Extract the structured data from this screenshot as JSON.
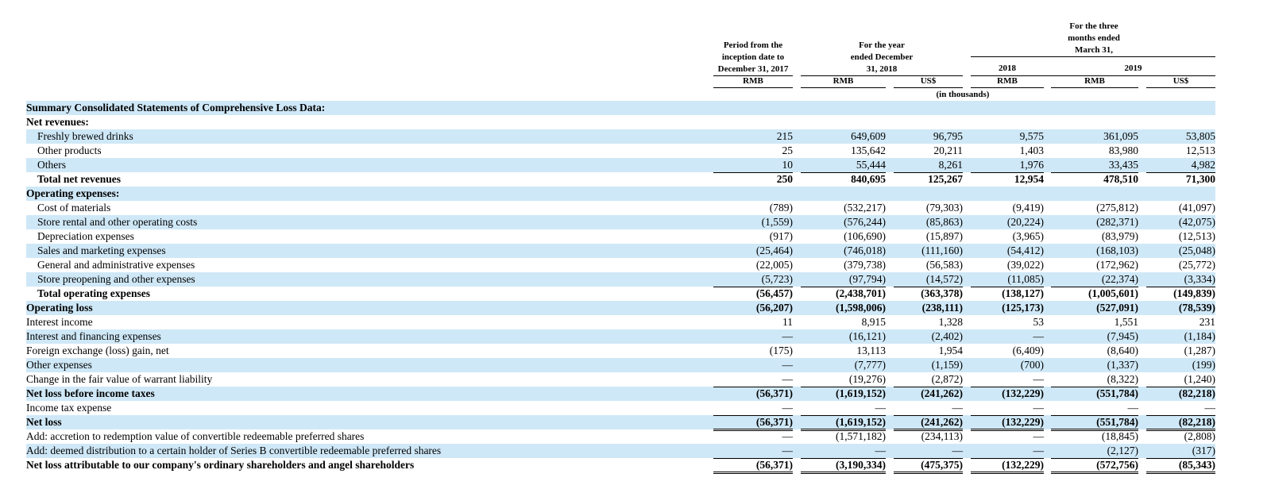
{
  "header": {
    "col1": "Period from the inception date to December 31, 2017",
    "year_group": "For the year ended December 31, 2018",
    "three_months_group": "For the three months ended March 31,",
    "year_2018": "2018",
    "year_2019": "2019",
    "currencies": [
      "RMB",
      "RMB",
      "US$",
      "RMB",
      "RMB",
      "US$"
    ],
    "unit": "(in thousands)"
  },
  "rows": [
    {
      "label": "Summary Consolidated Statements of Comprehensive Loss Data:",
      "values": []
    },
    {
      "label": "Net revenues:",
      "values": []
    },
    {
      "label": "Freshly brewed drinks",
      "values": [
        "215",
        "649,609",
        "96,795",
        "9,575",
        "361,095",
        "53,805"
      ]
    },
    {
      "label": "Other products",
      "values": [
        "25",
        "135,642",
        "20,211",
        "1,403",
        "83,980",
        "12,513"
      ]
    },
    {
      "label": "Others",
      "values": [
        "10",
        "55,444",
        "8,261",
        "1,976",
        "33,435",
        "4,982"
      ]
    },
    {
      "label": "Total net revenues",
      "values": [
        "250",
        "840,695",
        "125,267",
        "12,954",
        "478,510",
        "71,300"
      ]
    },
    {
      "label": "Operating expenses:",
      "values": []
    },
    {
      "label": "Cost of materials",
      "values": [
        "(789)",
        "(532,217)",
        "(79,303)",
        "(9,419)",
        "(275,812)",
        "(41,097)"
      ]
    },
    {
      "label": "Store rental and other operating costs",
      "values": [
        "(1,559)",
        "(576,244)",
        "(85,863)",
        "(20,224)",
        "(282,371)",
        "(42,075)"
      ]
    },
    {
      "label": "Depreciation expenses",
      "values": [
        "(917)",
        "(106,690)",
        "(15,897)",
        "(3,965)",
        "(83,979)",
        "(12,513)"
      ]
    },
    {
      "label": "Sales and marketing expenses",
      "values": [
        "(25,464)",
        "(746,018)",
        "(111,160)",
        "(54,412)",
        "(168,103)",
        "(25,048)"
      ]
    },
    {
      "label": "General and administrative expenses",
      "values": [
        "(22,005)",
        "(379,738)",
        "(56,583)",
        "(39,022)",
        "(172,962)",
        "(25,772)"
      ]
    },
    {
      "label": "Store preopening and other expenses",
      "values": [
        "(5,723)",
        "(97,794)",
        "(14,572)",
        "(11,085)",
        "(22,374)",
        "(3,334)"
      ]
    },
    {
      "label": "Total operating expenses",
      "values": [
        "(56,457)",
        "(2,438,701)",
        "(363,378)",
        "(138,127)",
        "(1,005,601)",
        "(149,839)"
      ]
    },
    {
      "label": "Operating loss",
      "values": [
        "(56,207)",
        "(1,598,006)",
        "(238,111)",
        "(125,173)",
        "(527,091)",
        "(78,539)"
      ]
    },
    {
      "label": "Interest income",
      "values": [
        "11",
        "8,915",
        "1,328",
        "53",
        "1,551",
        "231"
      ]
    },
    {
      "label": "Interest and financing expenses",
      "values": [
        "—",
        "(16,121)",
        "(2,402)",
        "—",
        "(7,945)",
        "(1,184)"
      ]
    },
    {
      "label": "Foreign exchange (loss) gain, net",
      "values": [
        "(175)",
        "13,113",
        "1,954",
        "(6,409)",
        "(8,640)",
        "(1,287)"
      ]
    },
    {
      "label": "Other expenses",
      "values": [
        "—",
        "(7,777)",
        "(1,159)",
        "(700)",
        "(1,337)",
        "(199)"
      ]
    },
    {
      "label": "Change in the fair value of warrant liability",
      "values": [
        "—",
        "(19,276)",
        "(2,872)",
        "—",
        "(8,322)",
        "(1,240)"
      ]
    },
    {
      "label": "Net loss before income taxes",
      "values": [
        "(56,371)",
        "(1,619,152)",
        "(241,262)",
        "(132,229)",
        "(551,784)",
        "(82,218)"
      ]
    },
    {
      "label": "Income tax expense",
      "values": [
        "—",
        "—",
        "—",
        "—",
        "—",
        "—"
      ]
    },
    {
      "label": "Net loss",
      "values": [
        "(56,371)",
        "(1,619,152)",
        "(241,262)",
        "(132,229)",
        "(551,784)",
        "(82,218)"
      ]
    },
    {
      "label": "Add: accretion to redemption value of convertible redeemable preferred shares",
      "values": [
        "—",
        "(1,571,182)",
        "(234,113)",
        "—",
        "(18,845)",
        "(2,808)"
      ]
    },
    {
      "label": "Add: deemed distribution to a certain holder of Series B convertible redeemable preferred shares",
      "values": [
        "—",
        "—",
        "—",
        "—",
        "(2,127)",
        "(317)"
      ]
    },
    {
      "label": "Net loss attributable to our company's ordinary shareholders and angel shareholders",
      "values": [
        "(56,371)",
        "(3,190,334)",
        "(475,375)",
        "(132,229)",
        "(572,756)",
        "(85,343)"
      ]
    }
  ]
}
